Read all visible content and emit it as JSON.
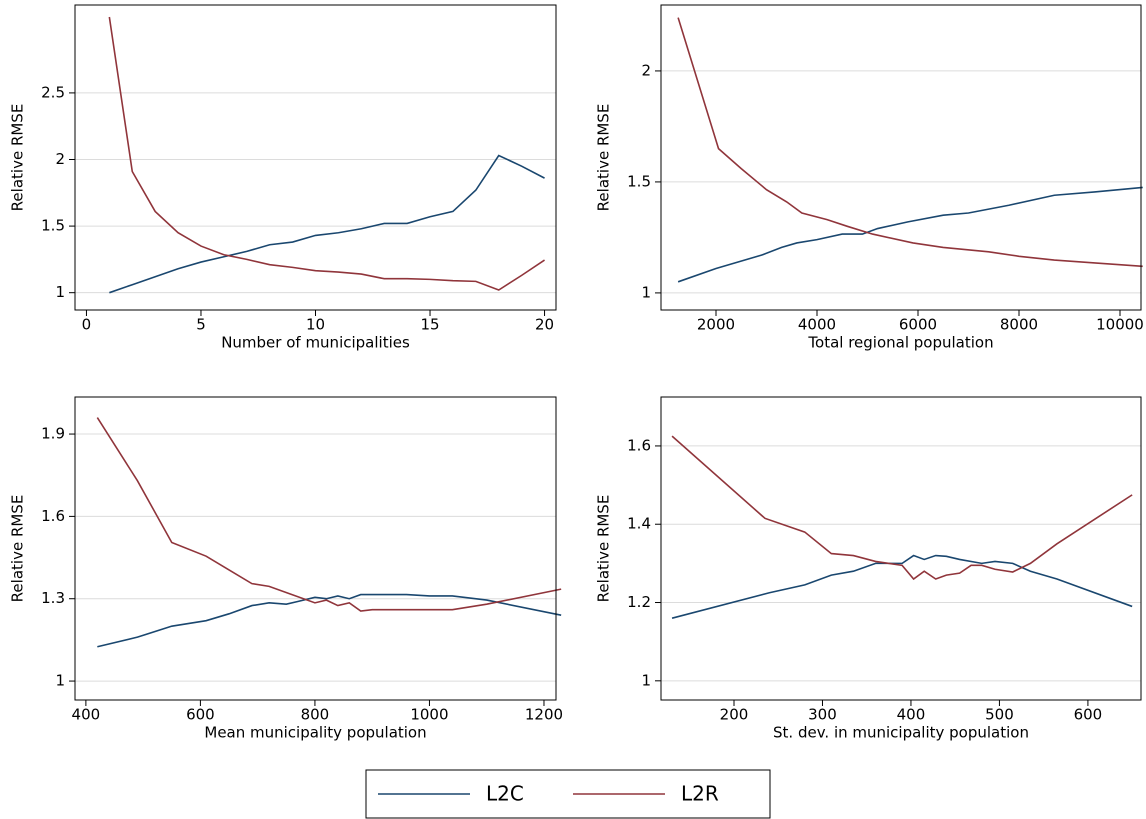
{
  "chart_data": [
    {
      "type": "line",
      "xlabel": "Number of municipalities",
      "ylabel": "Relative RMSE",
      "xlim": [
        -0.5,
        20.5
      ],
      "xticks": [
        0,
        5,
        10,
        15,
        20
      ],
      "ylim": [
        0.87,
        3.16
      ],
      "yticks": [
        1,
        1.5,
        2,
        2.5
      ],
      "grid": true,
      "x": [
        1,
        2,
        3,
        4,
        5,
        6,
        7,
        8,
        9,
        10,
        11,
        12,
        13,
        14,
        15,
        16,
        17,
        18,
        19,
        20
      ],
      "series": [
        {
          "values": [
            1.0,
            1.06,
            1.12,
            1.18,
            1.23,
            1.27,
            1.31,
            1.36,
            1.38,
            1.43,
            1.45,
            1.48,
            1.52,
            1.52,
            1.57,
            1.61,
            1.77,
            2.03,
            1.95,
            1.86
          ]
        },
        {
          "values": [
            3.07,
            1.91,
            1.61,
            1.45,
            1.35,
            1.285,
            1.25,
            1.21,
            1.19,
            1.165,
            1.155,
            1.14,
            1.105,
            1.105,
            1.1,
            1.09,
            1.085,
            1.02,
            1.13,
            1.245
          ]
        }
      ]
    },
    {
      "type": "line",
      "xlabel": "Total regional population",
      "ylabel": "Relative RMSE",
      "xlim": [
        911,
        10416
      ],
      "xticks": [
        2000,
        4000,
        6000,
        8000,
        10000
      ],
      "ylim": [
        0.923,
        2.297
      ],
      "yticks": [
        1,
        1.5,
        2
      ],
      "grid": true,
      "series": [
        {
          "x": [
            1250,
            2000,
            2900,
            3300,
            3600,
            4000,
            4500,
            4900,
            5200,
            5800,
            6500,
            7000,
            7800,
            8700,
            9500,
            10450
          ],
          "values": [
            1.05,
            1.11,
            1.17,
            1.205,
            1.225,
            1.24,
            1.265,
            1.265,
            1.29,
            1.32,
            1.35,
            1.36,
            1.395,
            1.44,
            1.455,
            1.475
          ]
        },
        {
          "x": [
            1250,
            2050,
            2500,
            3000,
            3400,
            3700,
            4200,
            4600,
            5100,
            5900,
            6500,
            7400,
            8000,
            8700,
            9500,
            10450
          ],
          "values": [
            2.24,
            1.65,
            1.56,
            1.465,
            1.41,
            1.36,
            1.33,
            1.3,
            1.265,
            1.225,
            1.205,
            1.185,
            1.165,
            1.148,
            1.135,
            1.12
          ]
        }
      ]
    },
    {
      "type": "line",
      "xlabel": "Mean municipality population",
      "ylabel": "Relative RMSE",
      "xlim": [
        381,
        1221
      ],
      "xticks": [
        400,
        600,
        800,
        1000,
        1200
      ],
      "ylim": [
        0.931,
        2.035
      ],
      "yticks": [
        1,
        1.3,
        1.6,
        1.9
      ],
      "grid": true,
      "series": [
        {
          "x": [
            420,
            490,
            550,
            610,
            650,
            690,
            720,
            750,
            770,
            800,
            820,
            840,
            860,
            880,
            930,
            960,
            1000,
            1040,
            1100,
            1230
          ],
          "values": [
            1.125,
            1.16,
            1.2,
            1.22,
            1.245,
            1.275,
            1.285,
            1.28,
            1.29,
            1.305,
            1.3,
            1.31,
            1.3,
            1.315,
            1.315,
            1.315,
            1.31,
            1.31,
            1.295,
            1.24
          ]
        },
        {
          "x": [
            420,
            490,
            550,
            610,
            650,
            690,
            720,
            760,
            800,
            820,
            840,
            860,
            880,
            900,
            960,
            1040,
            1100,
            1230
          ],
          "values": [
            1.96,
            1.73,
            1.505,
            1.455,
            1.405,
            1.355,
            1.345,
            1.315,
            1.285,
            1.295,
            1.275,
            1.285,
            1.255,
            1.26,
            1.26,
            1.26,
            1.28,
            1.335
          ]
        }
      ]
    },
    {
      "type": "line",
      "xlabel": "St. dev. in municipality population",
      "ylabel": "Relative RMSE",
      "xlim": [
        117.5,
        660
      ],
      "xticks": [
        200,
        300,
        400,
        500,
        600
      ],
      "ylim": [
        0.951,
        1.725
      ],
      "yticks": [
        1,
        1.2,
        1.4,
        1.6
      ],
      "grid": true,
      "series": [
        {
          "x": [
            130,
            240,
            280,
            310,
            335,
            360,
            390,
            403,
            415,
            428,
            440,
            455,
            480,
            495,
            515,
            535,
            565,
            650
          ],
          "values": [
            1.16,
            1.225,
            1.245,
            1.27,
            1.28,
            1.3,
            1.3,
            1.32,
            1.31,
            1.32,
            1.318,
            1.31,
            1.3,
            1.305,
            1.3,
            1.28,
            1.26,
            1.19
          ]
        },
        {
          "x": [
            130,
            235,
            280,
            310,
            335,
            360,
            390,
            403,
            415,
            428,
            440,
            455,
            468,
            480,
            495,
            515,
            535,
            565,
            650
          ],
          "values": [
            1.625,
            1.415,
            1.38,
            1.325,
            1.32,
            1.305,
            1.295,
            1.26,
            1.28,
            1.26,
            1.27,
            1.275,
            1.295,
            1.295,
            1.285,
            1.278,
            1.3,
            1.35,
            1.475
          ]
        }
      ]
    }
  ],
  "legend": {
    "series": [
      {
        "name": "L2C",
        "color": "#1a476f"
      },
      {
        "name": "L2R",
        "color": "#90353b"
      }
    ]
  }
}
